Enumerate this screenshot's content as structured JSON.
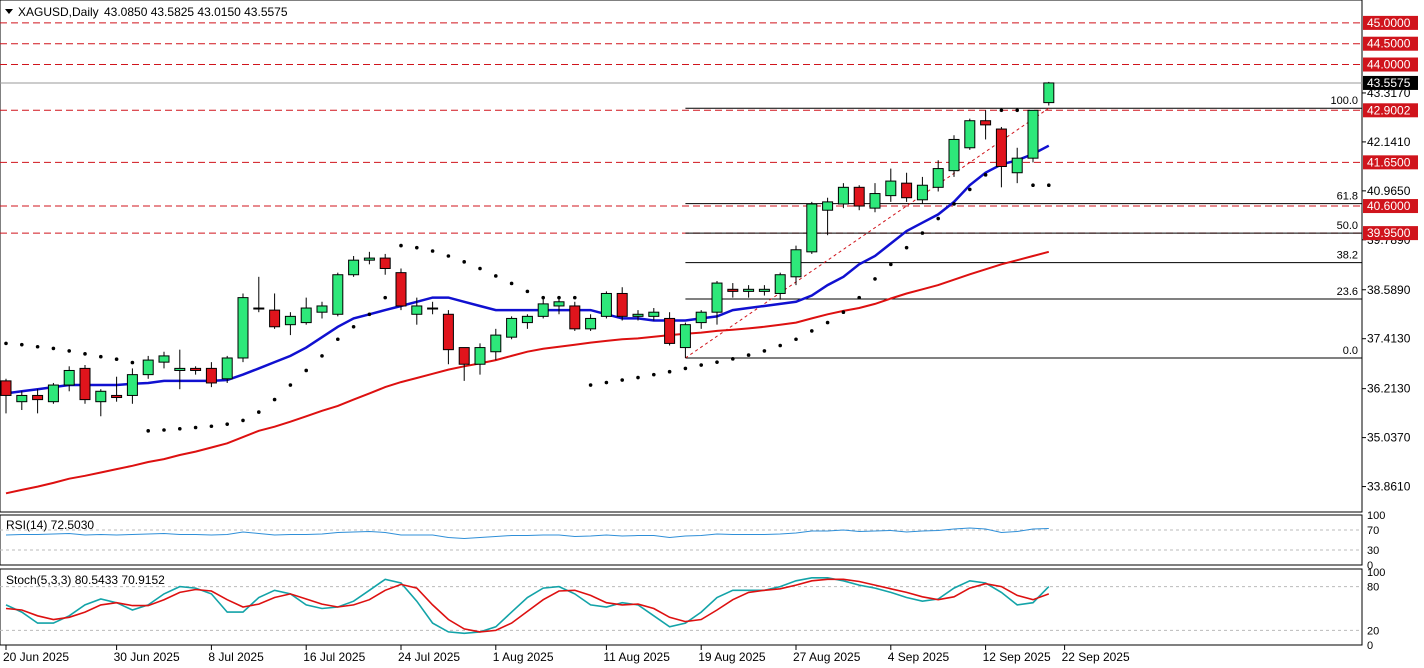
{
  "header": {
    "symbol_label": "XAGUSD,Daily",
    "ohlc_label": "43.0850 43.5825 43.0150 43.5575"
  },
  "colors": {
    "up_candle": "#2ee87a",
    "down_candle": "#e0141c",
    "ma_fast": "#1010d0",
    "ma_slow": "#dd1010",
    "resistance_line": "#d0141c",
    "rsi_line": "#2f8fd8",
    "stoch_main": "#13a3a8",
    "stoch_signal": "#dd1010"
  },
  "chart_data": [
    {
      "type": "candlestick",
      "title": "XAGUSD,Daily",
      "ylim": [
        33.25,
        45.55
      ],
      "x_ticks": [
        "20 Jun 2025",
        "30 Jun 2025",
        "8 Jul 2025",
        "16 Jul 2025",
        "24 Jul 2025",
        "1 Aug 2025",
        "11 Aug 2025",
        "19 Aug 2025",
        "27 Aug 2025",
        "4 Sep 2025",
        "12 Sep 2025",
        "22 Sep 2025"
      ],
      "y_ticks": [
        "43.3170",
        "42.1410",
        "40.9650",
        "39.7890",
        "38.5890",
        "37.4130",
        "36.2130",
        "35.0370",
        "33.8610"
      ],
      "current_price_label": "43.5575",
      "candles": [
        {
          "o": 36.4,
          "h": 36.45,
          "l": 35.62,
          "c": 36.05
        },
        {
          "o": 35.9,
          "h": 36.15,
          "l": 35.7,
          "c": 36.05
        },
        {
          "o": 36.05,
          "h": 36.2,
          "l": 35.62,
          "c": 35.95
        },
        {
          "o": 35.9,
          "h": 36.35,
          "l": 35.85,
          "c": 36.3
        },
        {
          "o": 36.3,
          "h": 36.75,
          "l": 36.15,
          "c": 36.65
        },
        {
          "o": 36.7,
          "h": 36.78,
          "l": 35.85,
          "c": 35.95
        },
        {
          "o": 35.9,
          "h": 36.2,
          "l": 35.55,
          "c": 36.15
        },
        {
          "o": 36.05,
          "h": 36.5,
          "l": 35.9,
          "c": 36.0
        },
        {
          "o": 36.05,
          "h": 36.7,
          "l": 35.85,
          "c": 36.55
        },
        {
          "o": 36.55,
          "h": 37.0,
          "l": 36.45,
          "c": 36.9
        },
        {
          "o": 36.85,
          "h": 37.1,
          "l": 36.7,
          "c": 37.0
        },
        {
          "o": 36.65,
          "h": 37.15,
          "l": 36.2,
          "c": 36.7
        },
        {
          "o": 36.7,
          "h": 36.75,
          "l": 36.55,
          "c": 36.65
        },
        {
          "o": 36.7,
          "h": 36.85,
          "l": 36.25,
          "c": 36.35
        },
        {
          "o": 36.45,
          "h": 37.0,
          "l": 36.35,
          "c": 36.95
        },
        {
          "o": 36.95,
          "h": 38.5,
          "l": 36.85,
          "c": 38.4
        },
        {
          "o": 38.15,
          "h": 38.9,
          "l": 38.05,
          "c": 38.15
        },
        {
          "o": 38.1,
          "h": 38.5,
          "l": 37.65,
          "c": 37.7
        },
        {
          "o": 37.75,
          "h": 38.05,
          "l": 37.5,
          "c": 37.95
        },
        {
          "o": 37.8,
          "h": 38.4,
          "l": 37.75,
          "c": 38.15
        },
        {
          "o": 38.05,
          "h": 38.3,
          "l": 37.9,
          "c": 38.2
        },
        {
          "o": 38.0,
          "h": 39.0,
          "l": 37.95,
          "c": 38.95
        },
        {
          "o": 38.95,
          "h": 39.4,
          "l": 38.9,
          "c": 39.3
        },
        {
          "o": 39.3,
          "h": 39.5,
          "l": 39.2,
          "c": 39.35
        },
        {
          "o": 39.35,
          "h": 39.45,
          "l": 38.95,
          "c": 39.1
        },
        {
          "o": 39.0,
          "h": 39.1,
          "l": 38.1,
          "c": 38.2
        },
        {
          "o": 38.0,
          "h": 38.4,
          "l": 37.75,
          "c": 38.2
        },
        {
          "o": 38.15,
          "h": 38.3,
          "l": 38.0,
          "c": 38.15
        },
        {
          "o": 38.0,
          "h": 38.1,
          "l": 36.8,
          "c": 37.15
        },
        {
          "o": 37.2,
          "h": 37.2,
          "l": 36.4,
          "c": 36.8
        },
        {
          "o": 36.8,
          "h": 37.3,
          "l": 36.55,
          "c": 37.2
        },
        {
          "o": 37.1,
          "h": 37.65,
          "l": 36.9,
          "c": 37.5
        },
        {
          "o": 37.45,
          "h": 37.95,
          "l": 37.4,
          "c": 37.9
        },
        {
          "o": 37.8,
          "h": 38.0,
          "l": 37.65,
          "c": 37.95
        },
        {
          "o": 37.95,
          "h": 38.4,
          "l": 37.9,
          "c": 38.25
        },
        {
          "o": 38.2,
          "h": 38.4,
          "l": 38.0,
          "c": 38.3
        },
        {
          "o": 38.2,
          "h": 38.3,
          "l": 37.6,
          "c": 37.65
        },
        {
          "o": 37.65,
          "h": 38.0,
          "l": 37.6,
          "c": 37.9
        },
        {
          "o": 37.95,
          "h": 38.55,
          "l": 37.9,
          "c": 38.5
        },
        {
          "o": 38.5,
          "h": 38.65,
          "l": 37.85,
          "c": 37.95
        },
        {
          "o": 37.95,
          "h": 38.1,
          "l": 37.85,
          "c": 38.0
        },
        {
          "o": 37.95,
          "h": 38.15,
          "l": 37.85,
          "c": 38.05
        },
        {
          "o": 37.9,
          "h": 38.05,
          "l": 37.25,
          "c": 37.3
        },
        {
          "o": 37.2,
          "h": 37.8,
          "l": 36.95,
          "c": 37.75
        },
        {
          "o": 37.8,
          "h": 38.1,
          "l": 37.65,
          "c": 38.05
        },
        {
          "o": 38.05,
          "h": 38.8,
          "l": 37.75,
          "c": 38.75
        },
        {
          "o": 38.6,
          "h": 38.75,
          "l": 38.4,
          "c": 38.55
        },
        {
          "o": 38.55,
          "h": 38.7,
          "l": 38.4,
          "c": 38.6
        },
        {
          "o": 38.55,
          "h": 38.7,
          "l": 38.45,
          "c": 38.6
        },
        {
          "o": 38.5,
          "h": 39.0,
          "l": 38.35,
          "c": 38.95
        },
        {
          "o": 38.9,
          "h": 39.65,
          "l": 38.7,
          "c": 39.55
        },
        {
          "o": 39.5,
          "h": 40.7,
          "l": 39.45,
          "c": 40.65
        },
        {
          "o": 40.5,
          "h": 40.8,
          "l": 39.9,
          "c": 40.7
        },
        {
          "o": 40.65,
          "h": 41.15,
          "l": 40.55,
          "c": 41.05
        },
        {
          "o": 41.05,
          "h": 41.1,
          "l": 40.5,
          "c": 40.6
        },
        {
          "o": 40.55,
          "h": 41.15,
          "l": 40.45,
          "c": 40.9
        },
        {
          "o": 40.85,
          "h": 41.5,
          "l": 40.7,
          "c": 41.2
        },
        {
          "o": 41.15,
          "h": 41.4,
          "l": 40.7,
          "c": 40.8
        },
        {
          "o": 40.75,
          "h": 41.3,
          "l": 40.65,
          "c": 41.1
        },
        {
          "o": 41.05,
          "h": 41.7,
          "l": 40.95,
          "c": 41.5
        },
        {
          "o": 41.45,
          "h": 42.3,
          "l": 41.3,
          "c": 42.2
        },
        {
          "o": 42.0,
          "h": 42.7,
          "l": 41.95,
          "c": 42.65
        },
        {
          "o": 42.65,
          "h": 42.9,
          "l": 42.2,
          "c": 42.55
        },
        {
          "o": 42.45,
          "h": 42.5,
          "l": 41.05,
          "c": 41.55
        },
        {
          "o": 41.4,
          "h": 42.0,
          "l": 41.15,
          "c": 41.75
        },
        {
          "o": 41.75,
          "h": 42.9,
          "l": 41.65,
          "c": 42.9
        },
        {
          "o": 43.085,
          "h": 43.5825,
          "l": 43.015,
          "c": 43.5575
        }
      ],
      "moving_average_fast": [
        36.1,
        36.15,
        36.2,
        36.25,
        36.3,
        36.3,
        36.3,
        36.3,
        36.33,
        36.35,
        36.4,
        36.4,
        36.4,
        36.4,
        36.42,
        36.55,
        36.7,
        36.85,
        37.0,
        37.2,
        37.45,
        37.7,
        37.9,
        38.0,
        38.1,
        38.2,
        38.3,
        38.4,
        38.4,
        38.3,
        38.2,
        38.1,
        38.1,
        38.1,
        38.1,
        38.1,
        38.1,
        38.1,
        38.0,
        37.9,
        37.9,
        37.85,
        37.85,
        37.85,
        37.9,
        37.95,
        38.1,
        38.15,
        38.2,
        38.25,
        38.3,
        38.45,
        38.7,
        38.9,
        39.2,
        39.4,
        39.7,
        40.0,
        40.2,
        40.4,
        40.7,
        41.1,
        41.4,
        41.6,
        41.7,
        41.85,
        42.05
      ],
      "moving_average_slow": [
        33.7,
        33.78,
        33.86,
        33.95,
        34.05,
        34.12,
        34.2,
        34.28,
        34.36,
        34.45,
        34.52,
        34.62,
        34.7,
        34.8,
        34.9,
        35.05,
        35.2,
        35.3,
        35.42,
        35.55,
        35.68,
        35.8,
        35.95,
        36.1,
        36.25,
        36.37,
        36.47,
        36.57,
        36.67,
        36.75,
        36.82,
        36.9,
        37.0,
        37.1,
        37.17,
        37.22,
        37.27,
        37.32,
        37.36,
        37.4,
        37.42,
        37.46,
        37.5,
        37.53,
        37.56,
        37.6,
        37.63,
        37.66,
        37.7,
        37.75,
        37.8,
        37.9,
        38.0,
        38.08,
        38.15,
        38.25,
        38.38,
        38.5,
        38.6,
        38.7,
        38.83,
        38.96,
        39.08,
        39.2,
        39.3,
        39.4,
        39.5
      ],
      "parabolic_sar": [
        {
          "i": 0,
          "v": 37.3
        },
        {
          "i": 1,
          "v": 37.27
        },
        {
          "i": 2,
          "v": 37.22
        },
        {
          "i": 3,
          "v": 37.18
        },
        {
          "i": 4,
          "v": 37.12
        },
        {
          "i": 5,
          "v": 37.05
        },
        {
          "i": 6,
          "v": 36.98
        },
        {
          "i": 7,
          "v": 36.92
        },
        {
          "i": 8,
          "v": 36.84
        },
        {
          "i": 9,
          "v": 35.2
        },
        {
          "i": 10,
          "v": 35.22
        },
        {
          "i": 11,
          "v": 35.25
        },
        {
          "i": 12,
          "v": 35.28
        },
        {
          "i": 13,
          "v": 35.31
        },
        {
          "i": 14,
          "v": 35.36
        },
        {
          "i": 15,
          "v": 35.45
        },
        {
          "i": 16,
          "v": 35.65
        },
        {
          "i": 17,
          "v": 35.95
        },
        {
          "i": 18,
          "v": 36.3
        },
        {
          "i": 19,
          "v": 36.65
        },
        {
          "i": 20,
          "v": 37.0
        },
        {
          "i": 21,
          "v": 37.4
        },
        {
          "i": 22,
          "v": 37.7
        },
        {
          "i": 23,
          "v": 38.0
        },
        {
          "i": 24,
          "v": 38.4
        },
        {
          "i": 25,
          "v": 39.65
        },
        {
          "i": 26,
          "v": 39.6
        },
        {
          "i": 27,
          "v": 39.52
        },
        {
          "i": 28,
          "v": 39.4
        },
        {
          "i": 29,
          "v": 39.26
        },
        {
          "i": 30,
          "v": 39.1
        },
        {
          "i": 31,
          "v": 38.92
        },
        {
          "i": 32,
          "v": 38.74
        },
        {
          "i": 33,
          "v": 38.55
        },
        {
          "i": 34,
          "v": 38.4
        },
        {
          "i": 35,
          "v": 38.4
        },
        {
          "i": 36,
          "v": 38.4
        },
        {
          "i": 37,
          "v": 36.3
        },
        {
          "i": 38,
          "v": 36.36
        },
        {
          "i": 39,
          "v": 36.42
        },
        {
          "i": 40,
          "v": 36.48
        },
        {
          "i": 41,
          "v": 36.55
        },
        {
          "i": 42,
          "v": 36.62
        },
        {
          "i": 43,
          "v": 36.7
        },
        {
          "i": 44,
          "v": 36.78
        },
        {
          "i": 45,
          "v": 36.85
        },
        {
          "i": 46,
          "v": 36.93
        },
        {
          "i": 47,
          "v": 37.02
        },
        {
          "i": 48,
          "v": 37.12
        },
        {
          "i": 49,
          "v": 37.25
        },
        {
          "i": 50,
          "v": 37.4
        },
        {
          "i": 51,
          "v": 37.6
        },
        {
          "i": 52,
          "v": 37.8
        },
        {
          "i": 53,
          "v": 38.05
        },
        {
          "i": 54,
          "v": 38.4
        },
        {
          "i": 55,
          "v": 38.85
        },
        {
          "i": 56,
          "v": 39.2
        },
        {
          "i": 57,
          "v": 39.6
        },
        {
          "i": 58,
          "v": 39.95
        },
        {
          "i": 59,
          "v": 40.3
        },
        {
          "i": 60,
          "v": 40.65
        },
        {
          "i": 61,
          "v": 41.0
        },
        {
          "i": 62,
          "v": 41.35
        },
        {
          "i": 63,
          "v": 42.9
        },
        {
          "i": 64,
          "v": 42.9
        },
        {
          "i": 65,
          "v": 41.1
        },
        {
          "i": 66,
          "v": 41.1
        }
      ],
      "horizontal_levels": [
        {
          "label": "45.0000",
          "value": 45.0,
          "style": "dashed"
        },
        {
          "label": "44.5000",
          "value": 44.5,
          "style": "dashed"
        },
        {
          "label": "44.0000",
          "value": 44.0,
          "style": "dashed"
        },
        {
          "label": "42.9002",
          "value": 42.9002,
          "style": "dashed"
        },
        {
          "label": "41.6500",
          "value": 41.65,
          "style": "dashed"
        },
        {
          "label": "40.6000",
          "value": 40.6,
          "style": "dashed"
        },
        {
          "label": "39.9500",
          "value": 39.95,
          "style": "dashed"
        }
      ],
      "fibonacci": {
        "low": 36.95,
        "high": 42.95,
        "start_index": 43,
        "end_index": 66,
        "levels": [
          {
            "label": "100.0",
            "ratio": 1.0
          },
          {
            "label": "61.8",
            "ratio": 0.618
          },
          {
            "label": "50.0",
            "ratio": 0.5
          },
          {
            "label": "38.2",
            "ratio": 0.382
          },
          {
            "label": "23.6",
            "ratio": 0.236
          },
          {
            "label": "0.0",
            "ratio": 0.0
          }
        ]
      }
    },
    {
      "type": "line",
      "title": "RSI(14) 72.5030",
      "ylim": [
        0,
        100
      ],
      "y_ticks": [
        "100",
        "70",
        "30",
        "0"
      ],
      "levels": [
        70,
        30
      ],
      "values": [
        60,
        61,
        61,
        62,
        63,
        60,
        61,
        60,
        61,
        62,
        63,
        61,
        61,
        60,
        61,
        66,
        63,
        60,
        61,
        61,
        62,
        65,
        66,
        67,
        65,
        60,
        60,
        60,
        55,
        53,
        55,
        57,
        59,
        59,
        60,
        60,
        57,
        58,
        60,
        58,
        59,
        59,
        55,
        58,
        59,
        62,
        61,
        61,
        61,
        62,
        64,
        68,
        68,
        70,
        67,
        68,
        69,
        66,
        68,
        69,
        72,
        74,
        72,
        65,
        67,
        72,
        73
      ]
    },
    {
      "type": "line",
      "title": "Stoch(5,3,3) 80.5433 70.9152",
      "ylim": [
        0,
        100
      ],
      "y_ticks": [
        "100",
        "80",
        "20",
        "0"
      ],
      "levels": [
        80,
        20
      ],
      "series": [
        {
          "values": [
            55,
            45,
            30,
            30,
            40,
            55,
            63,
            58,
            48,
            55,
            70,
            80,
            78,
            70,
            45,
            45,
            65,
            75,
            70,
            55,
            50,
            52,
            60,
            75,
            90,
            85,
            60,
            30,
            18,
            16,
            18,
            25,
            45,
            65,
            78,
            80,
            70,
            55,
            52,
            58,
            55,
            40,
            25,
            30,
            45,
            65,
            75,
            75,
            75,
            80,
            88,
            92,
            92,
            88,
            82,
            78,
            72,
            65,
            60,
            63,
            78,
            88,
            85,
            72,
            55,
            58,
            80
          ]
        },
        {
          "values": [
            50,
            48,
            40,
            35,
            38,
            45,
            55,
            58,
            54,
            54,
            62,
            72,
            76,
            74,
            62,
            52,
            56,
            65,
            70,
            63,
            56,
            52,
            55,
            62,
            75,
            83,
            78,
            55,
            35,
            22,
            18,
            20,
            30,
            46,
            62,
            74,
            75,
            68,
            58,
            55,
            56,
            50,
            38,
            32,
            35,
            48,
            62,
            72,
            75,
            77,
            82,
            88,
            90,
            90,
            87,
            82,
            77,
            72,
            66,
            62,
            66,
            78,
            84,
            80,
            68,
            62,
            70
          ]
        }
      ],
      "x_ticks": [
        "20 Jun 2025",
        "30 Jun 2025",
        "8 Jul 2025",
        "16 Jul 2025",
        "24 Jul 2025",
        "1 Aug 2025",
        "11 Aug 2025",
        "19 Aug 2025",
        "27 Aug 2025",
        "4 Sep 2025",
        "12 Sep 2025",
        "22 Sep 2025"
      ]
    }
  ]
}
